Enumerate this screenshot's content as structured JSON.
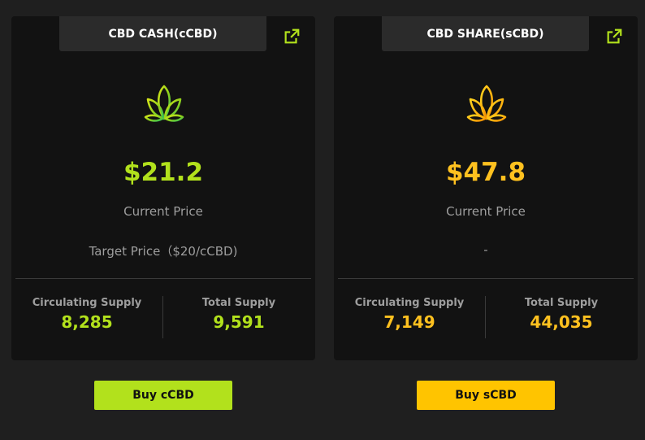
{
  "colors": {
    "ccbd_accent": "#b2e11c",
    "scbd_accent": "#ffc11f",
    "background": "#1f1f1f",
    "card": "#121212"
  },
  "ccbd": {
    "title": "CBD CASH(cCBD)",
    "link_icon": "external-link-icon",
    "logo_icon": "cannabis-leaf-icon",
    "price": "$21.2",
    "price_label": "Current Price",
    "target_price": "Target Price（$20/cCBD)",
    "circulating_label": "Circulating Supply",
    "circulating_value": "8,285",
    "total_label": "Total Supply",
    "total_value": "9,591",
    "buy_label": "Buy cCBD"
  },
  "scbd": {
    "title": "CBD SHARE(sCBD)",
    "link_icon": "external-link-icon",
    "logo_icon": "cannabis-leaf-icon",
    "price": "$47.8",
    "price_label": "Current Price",
    "target_price": "-",
    "circulating_label": "Circulating Supply",
    "circulating_value": "7,149",
    "total_label": "Total Supply",
    "total_value": "44,035",
    "buy_label": "Buy sCBD"
  }
}
